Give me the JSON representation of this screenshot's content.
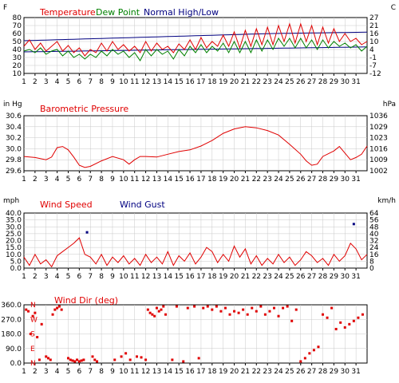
{
  "colors": {
    "temperature": "#e00000",
    "dew_point": "#008000",
    "normal": "#000080",
    "pressure": "#e00000",
    "wind_speed": "#e00000",
    "wind_gust": "#000080",
    "wind_dir": "#e00000",
    "grid": "#c8c8c8"
  },
  "chart_data": [
    {
      "type": "line",
      "series": [
        {
          "name": "Temperature",
          "color_key": "temperature"
        },
        {
          "name": "Dew Point",
          "color_key": "dew_point"
        },
        {
          "name": "Normal High/Low",
          "color_key": "normal"
        }
      ],
      "left_unit": "F",
      "right_unit": "C",
      "yticks_left": [
        "80",
        "70",
        "60",
        "50",
        "40",
        "30",
        "20",
        "10"
      ],
      "yticks_right": [
        "27",
        "21",
        "16",
        "10",
        "4",
        "-1",
        "-7",
        "-12"
      ],
      "ylim": [
        10,
        80
      ],
      "xticks": [
        "1",
        "2",
        "3",
        "4",
        "5",
        "6",
        "7",
        "8",
        "9",
        "10",
        "11",
        "12",
        "13",
        "14",
        "15",
        "16",
        "17",
        "18",
        "19",
        "20",
        "21",
        "22",
        "23",
        "24",
        "25",
        "26",
        "27",
        "28",
        "29",
        "30",
        "31"
      ],
      "x": [
        1,
        1.5,
        2,
        2.5,
        3,
        3.5,
        4,
        4.5,
        5,
        5.5,
        6,
        6.5,
        7,
        7.5,
        8,
        8.5,
        9,
        9.5,
        10,
        10.5,
        11,
        11.5,
        12,
        12.5,
        13,
        13.5,
        14,
        14.5,
        15,
        15.5,
        16,
        16.5,
        17,
        17.5,
        18,
        18.5,
        19,
        19.5,
        20,
        20.5,
        21,
        21.5,
        22,
        22.5,
        23,
        23.5,
        24,
        24.5,
        25,
        25.5,
        26,
        26.5,
        27,
        27.5,
        28,
        28.5,
        29,
        29.5,
        30,
        30.5,
        31,
        31.5,
        32
      ],
      "temperature": [
        44,
        52,
        40,
        48,
        38,
        44,
        50,
        38,
        45,
        36,
        42,
        32,
        40,
        36,
        48,
        38,
        50,
        40,
        46,
        38,
        44,
        36,
        50,
        38,
        48,
        40,
        44,
        36,
        47,
        40,
        52,
        40,
        55,
        42,
        50,
        44,
        58,
        44,
        62,
        42,
        64,
        44,
        66,
        46,
        68,
        46,
        70,
        50,
        72,
        48,
        72,
        50,
        70,
        46,
        68,
        48,
        66,
        50,
        60,
        50,
        54,
        46,
        50
      ],
      "dew_point": [
        38,
        40,
        36,
        42,
        34,
        38,
        40,
        32,
        38,
        30,
        34,
        28,
        34,
        30,
        38,
        32,
        40,
        34,
        38,
        30,
        36,
        26,
        40,
        32,
        40,
        34,
        38,
        28,
        40,
        32,
        44,
        36,
        46,
        36,
        44,
        38,
        48,
        36,
        50,
        36,
        50,
        36,
        52,
        38,
        52,
        40,
        54,
        44,
        54,
        42,
        54,
        42,
        52,
        40,
        52,
        42,
        50,
        44,
        48,
        42,
        46,
        38,
        44
      ],
      "normal_high": [
        51,
        51.2,
        51.4,
        51.6,
        51.8,
        52,
        52.2,
        52.4,
        52.6,
        52.8,
        53,
        53.2,
        53.4,
        53.6,
        53.8,
        54,
        54.2,
        54.4,
        54.6,
        54.8,
        55,
        55.2,
        55.4,
        55.6,
        55.8,
        56,
        56.2,
        56.4,
        56.6,
        56.8,
        57,
        57.2,
        57.4,
        57.6,
        57.8,
        58,
        58.2,
        58.4,
        58.6,
        58.8,
        59,
        59.2,
        59.4,
        59.6,
        59.8,
        60,
        60.1,
        60.2,
        60.3,
        60.4,
        60.5,
        60.6,
        60.7,
        60.8,
        60.9,
        61,
        61.1,
        61.2,
        61.3,
        61.4,
        61.5,
        61.6,
        61.7
      ],
      "normal_low": [
        37,
        37.1,
        37.2,
        37.3,
        37.4,
        37.5,
        37.6,
        37.7,
        37.8,
        37.9,
        38,
        38.1,
        38.2,
        38.3,
        38.4,
        38.5,
        38.6,
        38.7,
        38.8,
        38.9,
        39,
        39.1,
        39.2,
        39.3,
        39.4,
        39.5,
        39.6,
        39.7,
        39.8,
        39.9,
        40,
        40.1,
        40.2,
        40.3,
        40.4,
        40.5,
        40.6,
        40.7,
        40.8,
        40.9,
        41,
        41.1,
        41.2,
        41.3,
        41.4,
        41.5,
        41.6,
        41.7,
        41.8,
        41.9,
        42,
        42.1,
        42.2,
        42.3,
        42.4,
        42.5,
        42.6,
        42.7,
        42.8,
        42.9,
        43,
        43.1,
        43.2
      ]
    },
    {
      "type": "line",
      "series": [
        {
          "name": "Barometric Pressure",
          "color_key": "pressure"
        }
      ],
      "left_unit": "in Hg",
      "right_unit": "hPa",
      "yticks_left": [
        "30.6",
        "30.4",
        "30.2",
        "30.0",
        "29.8",
        "29.6"
      ],
      "yticks_right": [
        "1036",
        "1029",
        "1023",
        "1016",
        "1009",
        "1002"
      ],
      "ylim": [
        29.6,
        30.6
      ],
      "xticks": [
        "1",
        "2",
        "3",
        "4",
        "5",
        "6",
        "7",
        "8",
        "9",
        "10",
        "11",
        "12",
        "13",
        "14",
        "15",
        "16",
        "17",
        "18",
        "19",
        "20",
        "21",
        "22",
        "23",
        "24",
        "25",
        "26",
        "27",
        "28",
        "29",
        "30",
        "31"
      ],
      "x": [
        1,
        2,
        3,
        3.5,
        4,
        4.5,
        5,
        5.5,
        6,
        6.5,
        7,
        8,
        9,
        10,
        10.5,
        11,
        11.5,
        12,
        13,
        14,
        15,
        16,
        17,
        18,
        19,
        20,
        21,
        22,
        23,
        24,
        25,
        26,
        26.5,
        27,
        27.5,
        28,
        29,
        29.5,
        30,
        30.5,
        31,
        31.5,
        32
      ],
      "values": [
        29.86,
        29.84,
        29.8,
        29.85,
        30.02,
        30.04,
        29.98,
        29.85,
        29.7,
        29.66,
        29.68,
        29.78,
        29.86,
        29.8,
        29.72,
        29.8,
        29.86,
        29.86,
        29.85,
        29.9,
        29.95,
        29.98,
        30.05,
        30.15,
        30.28,
        30.36,
        30.4,
        30.38,
        30.33,
        30.25,
        30.08,
        29.9,
        29.78,
        29.7,
        29.72,
        29.86,
        29.96,
        30.04,
        29.92,
        29.8,
        29.84,
        29.9,
        30.05
      ]
    },
    {
      "type": "line",
      "series": [
        {
          "name": "Wind Speed",
          "color_key": "wind_speed"
        },
        {
          "name": "Wind Gust",
          "color_key": "wind_gust"
        }
      ],
      "left_unit": "mph",
      "right_unit": "km/h",
      "yticks_left": [
        "40.0",
        "35.0",
        "30.0",
        "25.0",
        "20.0",
        "15.0",
        "10.0",
        "5.0",
        "0.0"
      ],
      "yticks_right": [
        "64",
        "56",
        "48",
        "40",
        "32",
        "24",
        "16",
        "8",
        "0"
      ],
      "ylim": [
        0,
        40
      ],
      "xticks": [
        "1",
        "2",
        "3",
        "4",
        "5",
        "6",
        "7",
        "8",
        "9",
        "10",
        "11",
        "12",
        "13",
        "14",
        "15",
        "16",
        "17",
        "18",
        "19",
        "20",
        "21",
        "22",
        "23",
        "24",
        "25",
        "26",
        "27",
        "28",
        "29",
        "30",
        "31"
      ],
      "x": [
        1,
        1.5,
        2,
        2.5,
        3,
        3.5,
        4,
        4.5,
        5,
        5.5,
        6,
        6.5,
        7,
        7.5,
        8,
        8.5,
        9,
        9.5,
        10,
        10.5,
        11,
        11.5,
        12,
        12.5,
        13,
        13.5,
        14,
        14.5,
        15,
        15.5,
        16,
        16.5,
        17,
        17.5,
        18,
        18.5,
        19,
        19.5,
        20,
        20.5,
        21,
        21.5,
        22,
        22.5,
        23,
        23.5,
        24,
        24.5,
        25,
        25.5,
        26,
        26.5,
        27,
        27.5,
        28,
        28.5,
        29,
        29.5,
        30,
        30.5,
        31,
        31.5,
        32
      ],
      "wind_speed": [
        8,
        2,
        10,
        3,
        6,
        1,
        9,
        12,
        15,
        18,
        22,
        10,
        8,
        3,
        10,
        2,
        8,
        4,
        9,
        3,
        7,
        2,
        10,
        4,
        8,
        3,
        12,
        2,
        9,
        5,
        11,
        3,
        8,
        15,
        12,
        4,
        10,
        5,
        16,
        8,
        14,
        3,
        9,
        2,
        7,
        3,
        10,
        4,
        8,
        2,
        6,
        12,
        9,
        4,
        7,
        2,
        10,
        5,
        9,
        18,
        14,
        6,
        10
      ],
      "wind_gust_points": [
        {
          "x": 6.7,
          "y": 26
        },
        {
          "x": 30.8,
          "y": 32
        }
      ]
    },
    {
      "type": "scatter",
      "series": [
        {
          "name": "Wind Dir (deg)",
          "color_key": "wind_dir"
        }
      ],
      "yticks_left": [
        "360.0",
        "270.0",
        "180.0",
        "90.0",
        "0.0"
      ],
      "compass_letters": [
        "N",
        "W",
        "S",
        "E",
        "N"
      ],
      "ylim": [
        0,
        360
      ],
      "xticks": [
        "1",
        "2",
        "3",
        "4",
        "5",
        "6",
        "7",
        "8",
        "9",
        "10",
        "11",
        "12",
        "13",
        "14",
        "15",
        "16",
        "17",
        "18",
        "19",
        "20",
        "21",
        "22",
        "23",
        "24",
        "25",
        "26",
        "27",
        "28",
        "29",
        "30",
        "31"
      ],
      "x": [
        1.2,
        1.4,
        1.6,
        1.8,
        2.0,
        2.2,
        2.4,
        2.6,
        3.0,
        3.2,
        3.4,
        3.6,
        3.8,
        4.0,
        4.2,
        4.4,
        5.0,
        5.2,
        5.4,
        5.6,
        5.8,
        6.0,
        6.2,
        6.4,
        7.2,
        7.4,
        7.6,
        9.2,
        9.8,
        10.2,
        10.6,
        11.2,
        11.6,
        12.0,
        12.2,
        12.4,
        12.6,
        12.8,
        13.0,
        13.2,
        13.4,
        13.6,
        13.8,
        14.4,
        14.8,
        15.4,
        15.8,
        16.4,
        16.8,
        17.2,
        17.6,
        18.0,
        18.4,
        18.8,
        19.2,
        19.6,
        20.0,
        20.4,
        20.8,
        21.2,
        21.6,
        22.0,
        22.4,
        22.8,
        23.2,
        23.6,
        24.0,
        24.4,
        24.8,
        25.2,
        25.6,
        26.0,
        26.4,
        26.8,
        27.2,
        27.6,
        28.0,
        28.4,
        28.8,
        29.2,
        29.6,
        30.0,
        30.4,
        30.8,
        31.2,
        31.6
      ],
      "values": [
        330,
        320,
        180,
        290,
        310,
        160,
        20,
        240,
        40,
        30,
        20,
        300,
        330,
        340,
        350,
        330,
        30,
        20,
        15,
        10,
        20,
        10,
        15,
        20,
        40,
        20,
        10,
        20,
        40,
        60,
        20,
        40,
        35,
        20,
        330,
        310,
        300,
        290,
        340,
        320,
        330,
        350,
        300,
        20,
        350,
        10,
        340,
        350,
        30,
        340,
        350,
        330,
        350,
        320,
        340,
        300,
        320,
        310,
        330,
        300,
        340,
        320,
        350,
        300,
        320,
        340,
        290,
        340,
        350,
        260,
        330,
        10,
        30,
        60,
        80,
        100,
        300,
        280,
        340,
        210,
        250,
        220,
        240,
        260,
        280,
        300
      ]
    }
  ]
}
